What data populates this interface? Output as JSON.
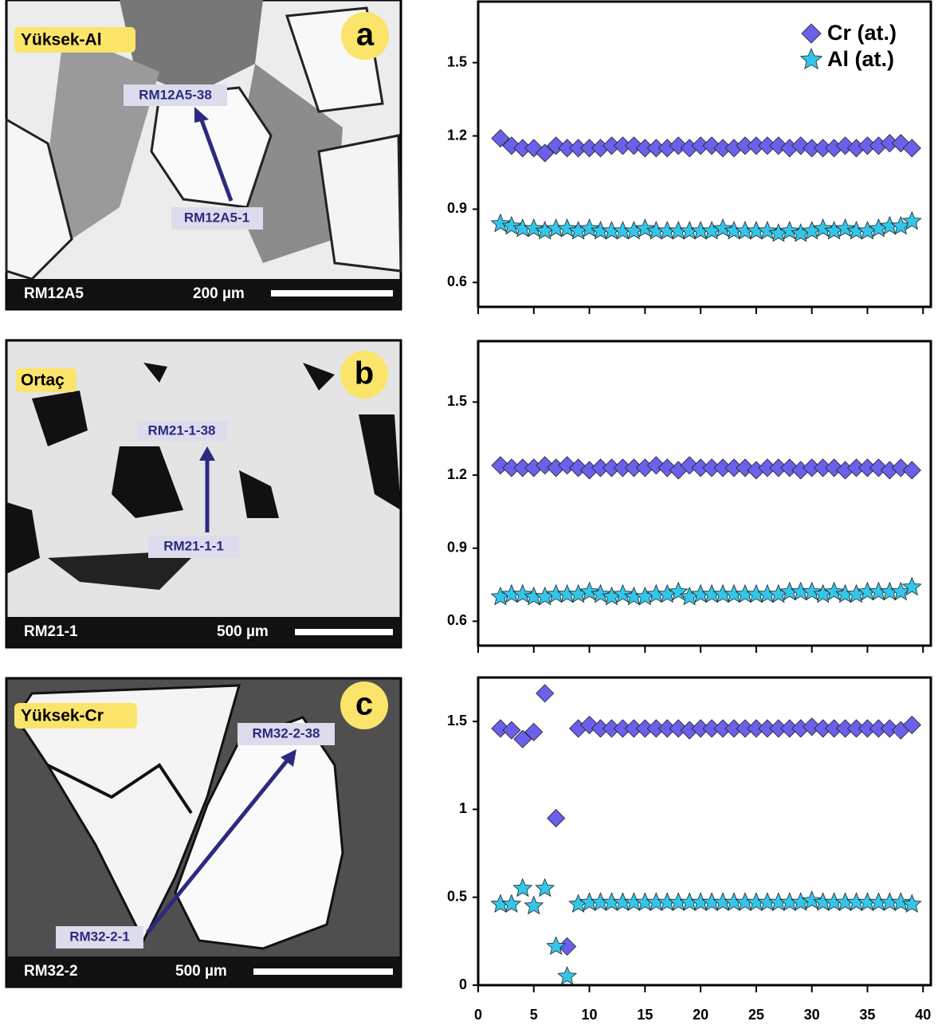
{
  "images": [
    {
      "tag": "Yüksek-Al",
      "letter": "a",
      "arrow_end": "RM12A5-38",
      "arrow_start": "RM12A5-1",
      "sample": "RM12A5",
      "scale": "200 µm"
    },
    {
      "tag": "Ortaç",
      "letter": "b",
      "arrow_end": "RM21-1-38",
      "arrow_start": "RM21-1-1",
      "sample": "RM21-1",
      "scale": "500 µm"
    },
    {
      "tag": "Yüksek-Cr",
      "letter": "c",
      "arrow_end": "RM32-2-38",
      "arrow_start": "RM32-2-1",
      "sample": "RM32-2",
      "scale": "500 µm"
    }
  ],
  "chart_data": [
    {
      "type": "scatter",
      "legend": "upper right",
      "x": [
        2,
        3,
        4,
        5,
        6,
        7,
        8,
        9,
        10,
        11,
        12,
        13,
        14,
        15,
        16,
        17,
        18,
        19,
        20,
        21,
        22,
        23,
        24,
        25,
        26,
        27,
        28,
        29,
        30,
        31,
        32,
        33,
        34,
        35,
        36,
        37,
        38,
        39
      ],
      "series": [
        {
          "name": "Cr (at.)",
          "color": "#6b60ea",
          "marker": "diamond",
          "values": [
            1.19,
            1.16,
            1.15,
            1.15,
            1.13,
            1.16,
            1.15,
            1.15,
            1.15,
            1.15,
            1.16,
            1.16,
            1.16,
            1.15,
            1.15,
            1.15,
            1.16,
            1.15,
            1.16,
            1.16,
            1.15,
            1.15,
            1.16,
            1.16,
            1.16,
            1.16,
            1.15,
            1.16,
            1.15,
            1.15,
            1.15,
            1.16,
            1.15,
            1.16,
            1.16,
            1.17,
            1.17,
            1.15
          ]
        },
        {
          "name": "Al (at.)",
          "color": "#33c6ea",
          "marker": "star",
          "values": [
            0.84,
            0.83,
            0.82,
            0.82,
            0.81,
            0.82,
            0.82,
            0.81,
            0.82,
            0.81,
            0.81,
            0.81,
            0.81,
            0.82,
            0.81,
            0.81,
            0.81,
            0.81,
            0.81,
            0.81,
            0.82,
            0.81,
            0.81,
            0.81,
            0.81,
            0.8,
            0.81,
            0.8,
            0.81,
            0.82,
            0.81,
            0.82,
            0.81,
            0.81,
            0.82,
            0.83,
            0.83,
            0.85
          ]
        }
      ],
      "xlim": [
        0,
        40.7
      ],
      "xticks": [
        0,
        5,
        10,
        15,
        20,
        25,
        30,
        35,
        40
      ],
      "xtick_labels": false,
      "ylim": [
        0.5,
        1.75
      ],
      "yticks": [
        0.6,
        0.9,
        1.2,
        1.5
      ]
    },
    {
      "type": "scatter",
      "x": [
        2,
        3,
        4,
        5,
        6,
        7,
        8,
        9,
        10,
        11,
        12,
        13,
        14,
        15,
        16,
        17,
        18,
        19,
        20,
        21,
        22,
        23,
        24,
        25,
        26,
        27,
        28,
        29,
        30,
        31,
        32,
        33,
        34,
        35,
        36,
        37,
        38,
        39
      ],
      "series": [
        {
          "name": "Cr (at.)",
          "color": "#6b60ea",
          "marker": "diamond",
          "values": [
            1.24,
            1.23,
            1.23,
            1.23,
            1.24,
            1.23,
            1.24,
            1.23,
            1.22,
            1.23,
            1.23,
            1.23,
            1.23,
            1.23,
            1.24,
            1.23,
            1.22,
            1.24,
            1.23,
            1.23,
            1.23,
            1.23,
            1.23,
            1.22,
            1.23,
            1.23,
            1.23,
            1.22,
            1.23,
            1.23,
            1.23,
            1.22,
            1.23,
            1.23,
            1.23,
            1.22,
            1.23,
            1.22
          ]
        },
        {
          "name": "Al (at.)",
          "color": "#33c6ea",
          "marker": "star",
          "values": [
            0.7,
            0.71,
            0.71,
            0.7,
            0.7,
            0.71,
            0.71,
            0.71,
            0.72,
            0.71,
            0.7,
            0.71,
            0.7,
            0.7,
            0.71,
            0.71,
            0.72,
            0.7,
            0.71,
            0.71,
            0.71,
            0.71,
            0.71,
            0.71,
            0.71,
            0.71,
            0.72,
            0.72,
            0.72,
            0.71,
            0.72,
            0.71,
            0.71,
            0.72,
            0.72,
            0.72,
            0.72,
            0.74
          ]
        }
      ],
      "xlim": [
        0,
        40.7
      ],
      "xticks": [
        0,
        5,
        10,
        15,
        20,
        25,
        30,
        35,
        40
      ],
      "xtick_labels": false,
      "ylim": [
        0.5,
        1.75
      ],
      "yticks": [
        0.6,
        0.9,
        1.2,
        1.5
      ]
    },
    {
      "type": "scatter",
      "x": [
        2,
        3,
        4,
        5,
        6,
        7,
        8,
        9,
        10,
        11,
        12,
        13,
        14,
        15,
        16,
        17,
        18,
        19,
        20,
        21,
        22,
        23,
        24,
        25,
        26,
        27,
        28,
        29,
        30,
        31,
        32,
        33,
        34,
        35,
        36,
        37,
        38,
        39
      ],
      "series": [
        {
          "name": "Cr (at.)",
          "color": "#6b60ea",
          "marker": "diamond",
          "values": [
            1.46,
            1.45,
            1.4,
            1.44,
            1.66,
            0.95,
            0.22,
            1.46,
            1.48,
            1.46,
            1.46,
            1.46,
            1.46,
            1.46,
            1.46,
            1.46,
            1.46,
            1.45,
            1.46,
            1.46,
            1.46,
            1.46,
            1.46,
            1.46,
            1.46,
            1.46,
            1.46,
            1.46,
            1.47,
            1.46,
            1.46,
            1.46,
            1.46,
            1.46,
            1.46,
            1.46,
            1.45,
            1.48
          ]
        },
        {
          "name": "Al (at.)",
          "color": "#33c6ea",
          "marker": "star",
          "values": [
            0.46,
            0.46,
            0.55,
            0.45,
            0.55,
            0.22,
            0.05,
            0.46,
            0.47,
            0.47,
            0.47,
            0.47,
            0.47,
            0.47,
            0.47,
            0.47,
            0.47,
            0.47,
            0.47,
            0.47,
            0.47,
            0.47,
            0.47,
            0.47,
            0.47,
            0.47,
            0.47,
            0.47,
            0.48,
            0.47,
            0.47,
            0.47,
            0.47,
            0.47,
            0.47,
            0.47,
            0.47,
            0.46
          ]
        }
      ],
      "xlim": [
        0,
        40.7
      ],
      "xticks": [
        0,
        5,
        10,
        15,
        20,
        25,
        30,
        35,
        40
      ],
      "xtick_labels": true,
      "ylim": [
        0,
        1.75
      ],
      "yticks": [
        0,
        0.5,
        1,
        1.5
      ]
    }
  ]
}
